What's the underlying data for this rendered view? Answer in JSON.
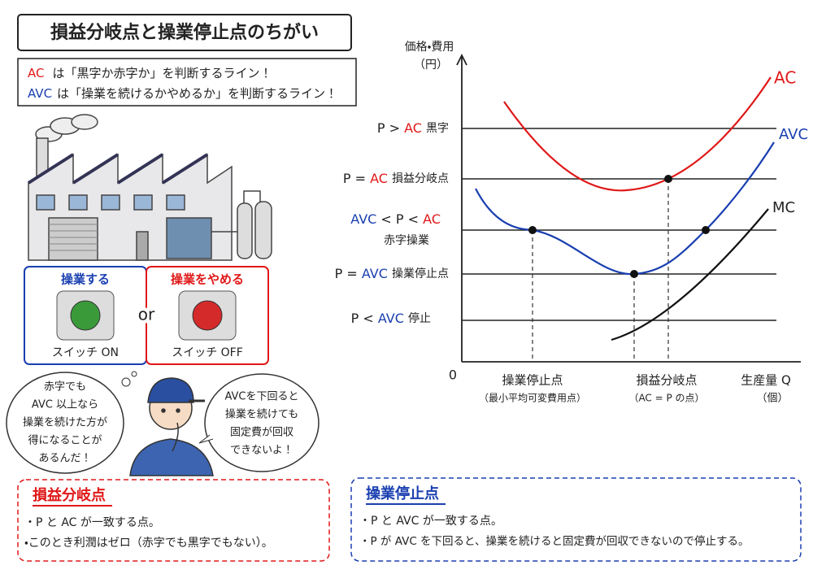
{
  "title": "損益分岐点と操業停止点のちがい",
  "intro": [
    {
      "term": "AC",
      "text": "は「黒字か赤字か」を判断するライン！"
    },
    {
      "term": "AVC",
      "text": "は「操業を続けるかやめるか」を判断するライン！"
    }
  ],
  "switches": [
    {
      "label": "操業する",
      "status": "スイッチ ON"
    },
    {
      "label": "操業をやめる",
      "status": "スイッチ OFF"
    }
  ],
  "or": "or",
  "bubbles": {
    "left": [
      "赤字でも",
      "AVC 以上なら",
      "操業を続けた方が",
      "得になることが",
      "あるんだ！"
    ],
    "right": [
      "AVCを下回ると",
      "操業を続けても",
      "固定費が回収",
      "できないよ！"
    ]
  },
  "chart": {
    "y_label": "価格・費用",
    "y_unit": "（円）",
    "origin": "0",
    "x_label": "生産量 Q",
    "x_unit": "（個）",
    "curves": [
      "AC",
      "AVC",
      "MC"
    ],
    "levels": [
      [
        "P >",
        "AC",
        "黒字"
      ],
      [
        "P =",
        "AC",
        "損益分岐点"
      ],
      [
        "AVC",
        "< P <",
        "AC",
        "赤字操業"
      ],
      [
        "P =",
        "AVC",
        "操業停止点"
      ],
      [
        "P <",
        "AVC",
        "停止"
      ]
    ],
    "points": [
      {
        "name": "操業停止点",
        "note": "（最小平均可変費用点）"
      },
      {
        "name": "損益分岐点",
        "note": "（AC = P の点）"
      }
    ]
  },
  "summary": [
    {
      "heading": "損益分岐点",
      "bullets": [
        "・P と AC が一致する点。",
        "・このとき利潤はゼロ（赤字でも黒字でもない）。"
      ]
    },
    {
      "heading": "操業停止点",
      "bullets": [
        "・P と AVC が一致する点。",
        "・P が AVC を下回ると、操業を続けると固定費が回収できないので停止する。"
      ]
    }
  ]
}
